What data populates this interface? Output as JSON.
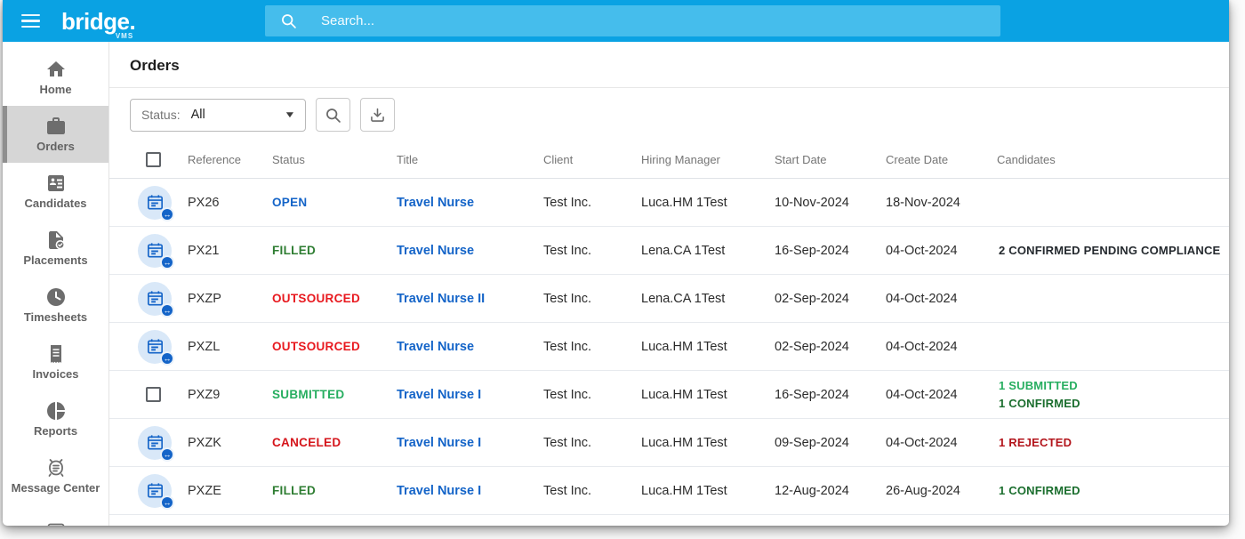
{
  "topbar": {
    "logo": "bridge.",
    "logo_sub": "VMS",
    "search_placeholder": "Search..."
  },
  "colors": {
    "topbar_blue": "#0aa2e3",
    "search_field_blue": "#45bdec",
    "accent_blue": "#1464c8",
    "green_dark": "#2e7d32",
    "green_bright": "#27ae60",
    "red_bright": "#e8191f",
    "red_dark": "#b3151c",
    "active_item_gray": "#d6d6d6"
  },
  "sidebar": {
    "items": [
      {
        "label": "Home",
        "icon": "home",
        "active": false
      },
      {
        "label": "Orders",
        "icon": "briefcase",
        "active": true
      },
      {
        "label": "Candidates",
        "icon": "candidates",
        "active": false
      },
      {
        "label": "Placements",
        "icon": "placements",
        "active": false
      },
      {
        "label": "Timesheets",
        "icon": "clock",
        "active": false
      },
      {
        "label": "Invoices",
        "icon": "receipt",
        "active": false
      },
      {
        "label": "Reports",
        "icon": "pie",
        "active": false
      },
      {
        "label": "Message Center",
        "icon": "message",
        "active": false
      },
      {
        "label": "",
        "icon": "audit",
        "active": false
      }
    ]
  },
  "page": {
    "title": "Orders"
  },
  "toolbar": {
    "status_label": "Status:",
    "status_value": "All",
    "caret": "▼"
  },
  "table": {
    "columns": [
      "Reference",
      "Status",
      "Title",
      "Client",
      "Hiring Manager",
      "Start Date",
      "Create Date",
      "Candidates"
    ],
    "rows": [
      {
        "lead": "order-icon",
        "reference": "PX26",
        "status": "OPEN",
        "status_color": "#1464c8",
        "title": "Travel Nurse",
        "client": "Test Inc.",
        "hiring_manager": "Luca.HM 1Test",
        "start_date": "10-Nov-2024",
        "create_date": "18-Nov-2024",
        "candidates": []
      },
      {
        "lead": "order-icon",
        "reference": "PX21",
        "status": "FILLED",
        "status_color": "#2e7d32",
        "title": "Travel Nurse",
        "client": "Test Inc.",
        "hiring_manager": "Lena.CA 1Test",
        "start_date": "16-Sep-2024",
        "create_date": "04-Oct-2024",
        "candidates": [
          {
            "text": "2 CONFIRMED PENDING COMPLIANCE",
            "color": "#24292e"
          }
        ]
      },
      {
        "lead": "order-icon",
        "reference": "PXZP",
        "status": "OUTSOURCED",
        "status_color": "#e8191f",
        "title": "Travel Nurse II",
        "client": "Test Inc.",
        "hiring_manager": "Lena.CA 1Test",
        "start_date": "02-Sep-2024",
        "create_date": "04-Oct-2024",
        "candidates": []
      },
      {
        "lead": "order-icon",
        "reference": "PXZL",
        "status": "OUTSOURCED",
        "status_color": "#e8191f",
        "title": "Travel Nurse",
        "client": "Test Inc.",
        "hiring_manager": "Luca.HM 1Test",
        "start_date": "02-Sep-2024",
        "create_date": "04-Oct-2024",
        "candidates": []
      },
      {
        "lead": "checkbox",
        "reference": "PXZ9",
        "status": "SUBMITTED",
        "status_color": "#27ae60",
        "title": "Travel Nurse I",
        "client": "Test Inc.",
        "hiring_manager": "Luca.HM 1Test",
        "start_date": "16-Sep-2024",
        "create_date": "04-Oct-2024",
        "candidates": [
          {
            "text": "1 SUBMITTED",
            "color": "#27ae60"
          },
          {
            "text": "1 CONFIRMED",
            "color": "#1b6e2e"
          }
        ]
      },
      {
        "lead": "order-icon",
        "reference": "PXZK",
        "status": "CANCELED",
        "status_color": "#d5151b",
        "title": "Travel Nurse I",
        "client": "Test Inc.",
        "hiring_manager": "Luca.HM 1Test",
        "start_date": "09-Sep-2024",
        "create_date": "04-Oct-2024",
        "candidates": [
          {
            "text": "1 REJECTED",
            "color": "#b3151c"
          }
        ]
      },
      {
        "lead": "order-icon",
        "reference": "PXZE",
        "status": "FILLED",
        "status_color": "#2e7d32",
        "title": "Travel Nurse I",
        "client": "Test Inc.",
        "hiring_manager": "Luca.HM 1Test",
        "start_date": "12-Aug-2024",
        "create_date": "26-Aug-2024",
        "candidates": [
          {
            "text": "1 CONFIRMED",
            "color": "#1b6e2e"
          }
        ]
      }
    ]
  }
}
